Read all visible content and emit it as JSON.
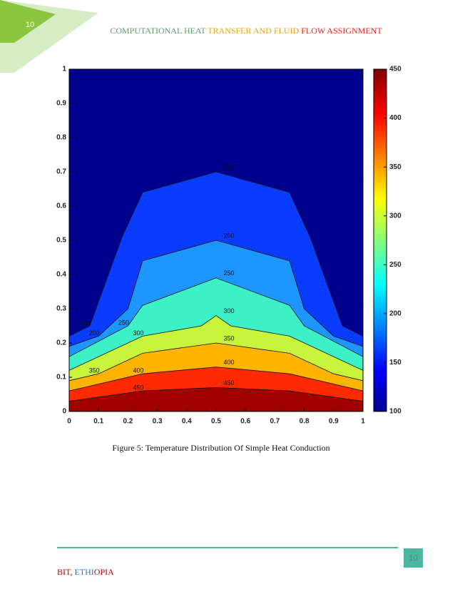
{
  "header": {
    "page_number": "10",
    "title_parts": [
      {
        "text": "COMPUTATIONAL HEAT ",
        "color": "#5e9a6e"
      },
      {
        "text": "TRANSFER AND FLUID ",
        "color": "#e8a317"
      },
      {
        "text": "FLOW ASSIGNMENT",
        "color": "#e3261d"
      }
    ]
  },
  "chart_data": {
    "type": "contour",
    "xlim": [
      0,
      1
    ],
    "ylim": [
      0,
      1
    ],
    "xticks": [
      0,
      0.1,
      0.2,
      0.3,
      0.4,
      0.5,
      0.6,
      0.7,
      0.8,
      0.9,
      1
    ],
    "yticks": [
      0,
      0.1,
      0.2,
      0.3,
      0.4,
      0.5,
      0.6,
      0.7,
      0.8,
      0.9,
      1
    ],
    "background": "#00008f",
    "levels": [
      {
        "value": 150,
        "color": "#0a3cff",
        "x": [
          0,
          0.07,
          0.18,
          0.25,
          0.5,
          0.75,
          0.82,
          0.93,
          1
        ],
        "y": [
          0.22,
          0.25,
          0.51,
          0.64,
          0.7,
          0.64,
          0.51,
          0.25,
          0.22
        ]
      },
      {
        "value": 200,
        "color": "#1e96ff",
        "x": [
          0,
          0.1,
          0.2,
          0.25,
          0.5,
          0.75,
          0.8,
          0.9,
          1
        ],
        "y": [
          0.19,
          0.22,
          0.3,
          0.44,
          0.5,
          0.44,
          0.3,
          0.22,
          0.19
        ]
      },
      {
        "value": 250,
        "color": "#3cf0c8",
        "x": [
          0,
          0.2,
          0.25,
          0.5,
          0.75,
          0.8,
          1
        ],
        "y": [
          0.16,
          0.25,
          0.31,
          0.39,
          0.31,
          0.25,
          0.16
        ]
      },
      {
        "value": 300,
        "color": "#c8f53c",
        "x": [
          0,
          0.25,
          0.45,
          0.5,
          0.55,
          0.75,
          1
        ],
        "y": [
          0.12,
          0.22,
          0.25,
          0.28,
          0.25,
          0.22,
          0.12
        ]
      },
      {
        "value": 350,
        "color": "#ffb400",
        "x": [
          0,
          0.1,
          0.25,
          0.5,
          0.75,
          0.9,
          1
        ],
        "y": [
          0.09,
          0.11,
          0.17,
          0.2,
          0.17,
          0.11,
          0.09
        ]
      },
      {
        "value": 400,
        "color": "#ff2a00",
        "x": [
          0,
          0.25,
          0.5,
          0.75,
          1
        ],
        "y": [
          0.06,
          0.11,
          0.13,
          0.11,
          0.06
        ]
      },
      {
        "value": 450,
        "color": "#a00000",
        "x": [
          0,
          0.25,
          0.5,
          0.75,
          1
        ],
        "y": [
          0.03,
          0.06,
          0.07,
          0.06,
          0.03
        ]
      }
    ],
    "colorbar": {
      "lim": [
        100,
        450
      ],
      "ticks": [
        100,
        150,
        200,
        250,
        300,
        350,
        400,
        450
      ]
    }
  },
  "caption": "Figure 5: Temperature Distribution Of Simple Heat Conduction",
  "footer": {
    "parts": [
      {
        "text": "BIT, ",
        "color": "#c00000"
      },
      {
        "text": "ETHI",
        "color": "#2e75b6"
      },
      {
        "text": "OPIA",
        "color": "#c00000"
      }
    ],
    "page_number": "10"
  }
}
